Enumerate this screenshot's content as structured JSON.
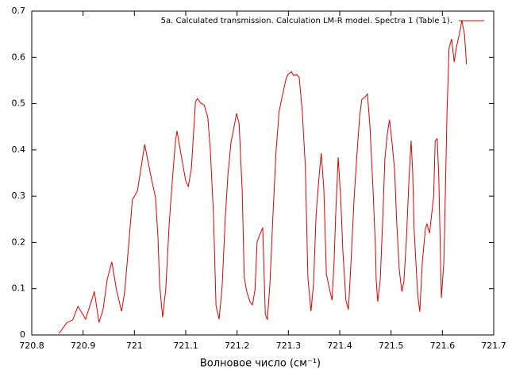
{
  "chart_data": {
    "type": "line",
    "xlabel": "Волновое число (см⁻¹)",
    "xlim": [
      720.8,
      721.7
    ],
    "xticks": [
      720.8,
      720.9,
      721,
      721.1,
      721.2,
      721.3,
      721.4,
      721.5,
      721.6,
      721.7
    ],
    "ylim": [
      0,
      0.7
    ],
    "yticks": [
      0,
      0.1,
      0.2,
      0.3,
      0.4,
      0.5,
      0.6,
      0.7
    ],
    "legend": "top-right",
    "series": [
      {
        "name": "5a. Calculated transmission. Calculation LM-R model. Spectra 1 (Table 1).",
        "color": "#dd0000",
        "x": [
          720.853,
          720.868,
          720.88,
          720.89,
          720.905,
          720.922,
          720.931,
          720.939,
          720.947,
          720.956,
          720.965,
          720.975,
          720.981,
          720.989,
          720.996,
          721.006,
          721.02,
          721.034,
          721.041,
          721.046,
          721.049,
          721.055,
          721.061,
          721.068,
          721.075,
          721.08,
          721.083,
          721.091,
          721.1,
          721.105,
          721.111,
          721.119,
          721.123,
          721.129,
          721.136,
          721.143,
          721.148,
          721.154,
          721.159,
          721.165,
          721.171,
          721.177,
          721.182,
          721.188,
          721.194,
          721.199,
          721.204,
          721.21,
          721.214,
          721.219,
          721.225,
          721.23,
          721.235,
          721.239,
          721.244,
          721.25,
          721.255,
          721.259,
          721.264,
          721.27,
          721.276,
          721.282,
          721.289,
          721.295,
          721.299,
          721.306,
          721.31,
          721.316,
          721.321,
          721.327,
          721.333,
          721.338,
          721.344,
          721.349,
          721.354,
          721.36,
          721.364,
          721.369,
          721.374,
          721.378,
          721.385,
          721.389,
          721.392,
          721.397,
          721.402,
          721.406,
          721.412,
          721.417,
          721.422,
          721.428,
          721.434,
          721.439,
          721.443,
          721.45,
          721.454,
          721.459,
          721.465,
          721.47,
          721.471,
          721.474,
          721.479,
          721.484,
          721.488,
          721.493,
          721.497,
          721.502,
          721.507,
          721.511,
          721.516,
          721.521,
          721.525,
          721.53,
          721.535,
          721.539,
          721.542,
          721.545,
          721.552,
          721.556,
          721.561,
          721.567,
          721.57,
          721.575,
          721.578,
          721.583,
          721.586,
          721.59,
          721.593,
          721.598,
          721.603,
          721.609,
          721.613,
          721.618,
          721.623,
          721.627,
          721.633,
          721.638,
          721.643,
          721.647
        ],
        "values": [
          0.003,
          0.026,
          0.033,
          0.062,
          0.034,
          0.094,
          0.027,
          0.055,
          0.12,
          0.158,
          0.098,
          0.051,
          0.093,
          0.197,
          0.292,
          0.312,
          0.412,
          0.333,
          0.298,
          0.209,
          0.111,
          0.038,
          0.098,
          0.244,
          0.35,
          0.419,
          0.441,
          0.389,
          0.333,
          0.321,
          0.36,
          0.504,
          0.511,
          0.501,
          0.497,
          0.47,
          0.398,
          0.261,
          0.063,
          0.034,
          0.106,
          0.252,
          0.343,
          0.415,
          0.449,
          0.479,
          0.456,
          0.312,
          0.124,
          0.093,
          0.072,
          0.065,
          0.098,
          0.201,
          0.216,
          0.232,
          0.045,
          0.033,
          0.11,
          0.261,
          0.398,
          0.484,
          0.521,
          0.552,
          0.563,
          0.569,
          0.561,
          0.563,
          0.557,
          0.484,
          0.364,
          0.124,
          0.051,
          0.111,
          0.261,
          0.346,
          0.393,
          0.316,
          0.132,
          0.11,
          0.075,
          0.158,
          0.257,
          0.384,
          0.295,
          0.184,
          0.075,
          0.055,
          0.158,
          0.295,
          0.398,
          0.475,
          0.509,
          0.515,
          0.521,
          0.449,
          0.312,
          0.175,
          0.12,
          0.072,
          0.12,
          0.257,
          0.381,
          0.437,
          0.465,
          0.415,
          0.355,
          0.244,
          0.141,
          0.094,
          0.115,
          0.209,
          0.338,
          0.42,
          0.357,
          0.226,
          0.086,
          0.05,
          0.158,
          0.23,
          0.24,
          0.22,
          0.25,
          0.3,
          0.42,
          0.424,
          0.34,
          0.08,
          0.16,
          0.48,
          0.62,
          0.64,
          0.59,
          0.62,
          0.65,
          0.68,
          0.65,
          0.585
        ]
      }
    ]
  }
}
